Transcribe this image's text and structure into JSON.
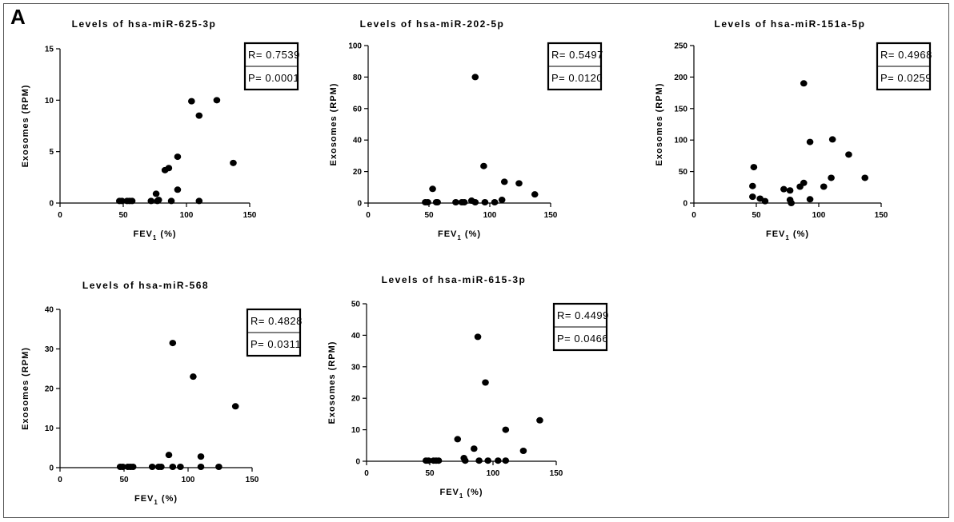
{
  "panel_label": "A",
  "chart_data": [
    {
      "type": "scatter",
      "title": "Levels of hsa-miR-625-3p",
      "xlabel": "FEV",
      "xlabel_sub": "1",
      "xlabel_suffix": " (%)",
      "ylabel": "Exosomes (RPM)",
      "xlim": [
        0,
        150
      ],
      "ylim": [
        0,
        15
      ],
      "xticks": [
        0,
        50,
        100,
        150
      ],
      "yticks": [
        0,
        5,
        10,
        15
      ],
      "stats": {
        "r": "R= 0.7539",
        "p": "P= 0.0001"
      },
      "points": [
        [
          47,
          0.2
        ],
        [
          49,
          0.2
        ],
        [
          53,
          0.2
        ],
        [
          55,
          0.2
        ],
        [
          57,
          0.2
        ],
        [
          72,
          0.2
        ],
        [
          77,
          0.2
        ],
        [
          76,
          0.9
        ],
        [
          78,
          0.3
        ],
        [
          83,
          3.2
        ],
        [
          86,
          3.4
        ],
        [
          88,
          0.2
        ],
        [
          93,
          4.5
        ],
        [
          93,
          1.3
        ],
        [
          104,
          9.9
        ],
        [
          110,
          8.5
        ],
        [
          110,
          0.2
        ],
        [
          124,
          10
        ],
        [
          137,
          3.9
        ]
      ]
    },
    {
      "type": "scatter",
      "title": "Levels of hsa-miR-202-5p",
      "xlabel": "FEV",
      "xlabel_sub": "1",
      "xlabel_suffix": " (%)",
      "ylabel": "Exosomes (RPM)",
      "xlim": [
        0,
        150
      ],
      "ylim": [
        0,
        100
      ],
      "xticks": [
        0,
        50,
        100,
        150
      ],
      "yticks": [
        0,
        20,
        40,
        60,
        80,
        100
      ],
      "stats": {
        "r": "R= 0.5497",
        "p": "P= 0.0120"
      },
      "points": [
        [
          47,
          0.5
        ],
        [
          49,
          0.5
        ],
        [
          53,
          9
        ],
        [
          56,
          0.5
        ],
        [
          57,
          0.5
        ],
        [
          72,
          0.5
        ],
        [
          77,
          0.5
        ],
        [
          79,
          0.5
        ],
        [
          85,
          1.5
        ],
        [
          88,
          80
        ],
        [
          88,
          0.5
        ],
        [
          95,
          23.5
        ],
        [
          96,
          0.5
        ],
        [
          104,
          0.5
        ],
        [
          110,
          2
        ],
        [
          112,
          13.5
        ],
        [
          124,
          12.5
        ],
        [
          137,
          5.5
        ]
      ]
    },
    {
      "type": "scatter",
      "title": "Levels of hsa-miR-151a-5p",
      "xlabel": "FEV",
      "xlabel_sub": "1",
      "xlabel_suffix": " (%)",
      "ylabel": "Exosomes (RPM)",
      "xlim": [
        0,
        150
      ],
      "ylim": [
        0,
        250
      ],
      "xticks": [
        0,
        50,
        100,
        150
      ],
      "yticks": [
        0,
        50,
        100,
        150,
        200,
        250
      ],
      "stats": {
        "r": "R= 0.4968",
        "p": "P= 0.0259"
      },
      "points": [
        [
          47,
          10
        ],
        [
          47,
          27
        ],
        [
          48,
          57
        ],
        [
          53,
          7
        ],
        [
          57,
          3
        ],
        [
          72,
          22
        ],
        [
          77,
          20
        ],
        [
          77,
          5
        ],
        [
          78,
          0
        ],
        [
          85,
          26
        ],
        [
          88,
          190
        ],
        [
          88,
          32
        ],
        [
          93,
          97
        ],
        [
          93,
          6
        ],
        [
          104,
          26
        ],
        [
          110,
          40
        ],
        [
          111,
          101
        ],
        [
          124,
          77
        ],
        [
          137,
          40
        ]
      ]
    },
    {
      "type": "scatter",
      "title": "Levels of hsa-miR-568",
      "xlabel": "FEV",
      "xlabel_sub": "1",
      "xlabel_suffix": " (%)",
      "ylabel": "Exosomes (RPM)",
      "xlim": [
        0,
        150
      ],
      "ylim": [
        0,
        40
      ],
      "xticks": [
        0,
        50,
        100,
        150
      ],
      "yticks": [
        0,
        10,
        20,
        30,
        40
      ],
      "stats": {
        "r": "R= 0.4828",
        "p": "P= 0.0311"
      },
      "points": [
        [
          47,
          0.2
        ],
        [
          49,
          0.2
        ],
        [
          53,
          0.2
        ],
        [
          55,
          0.2
        ],
        [
          57,
          0.2
        ],
        [
          72,
          0.2
        ],
        [
          77,
          0.2
        ],
        [
          79,
          0.2
        ],
        [
          85,
          3.2
        ],
        [
          88,
          31.5
        ],
        [
          88,
          0.2
        ],
        [
          94,
          0.2
        ],
        [
          104,
          23
        ],
        [
          110,
          2.8
        ],
        [
          110,
          0.2
        ],
        [
          124,
          0.2
        ],
        [
          137,
          15.5
        ]
      ]
    },
    {
      "type": "scatter",
      "title": "Levels of hsa-miR-615-3p",
      "xlabel": "FEV",
      "xlabel_sub": "1",
      "xlabel_suffix": " (%)",
      "ylabel": "Exosomes (RPM)",
      "xlim": [
        0,
        150
      ],
      "ylim": [
        0,
        50
      ],
      "xticks": [
        0,
        50,
        100,
        150
      ],
      "yticks": [
        0,
        10,
        20,
        30,
        40,
        50
      ],
      "stats": {
        "r": "R= 0.4499",
        "p": "P= 0.0466"
      },
      "points": [
        [
          47,
          0.2
        ],
        [
          49,
          0.2
        ],
        [
          53,
          0.2
        ],
        [
          55,
          0.2
        ],
        [
          57,
          0.2
        ],
        [
          72,
          7
        ],
        [
          77,
          1
        ],
        [
          78,
          0.2
        ],
        [
          85,
          4
        ],
        [
          88,
          39.5
        ],
        [
          89,
          0.2
        ],
        [
          94,
          25
        ],
        [
          96,
          0.2
        ],
        [
          104,
          0.2
        ],
        [
          110,
          10
        ],
        [
          110,
          0.2
        ],
        [
          124,
          3.3
        ],
        [
          137,
          13
        ]
      ]
    }
  ]
}
